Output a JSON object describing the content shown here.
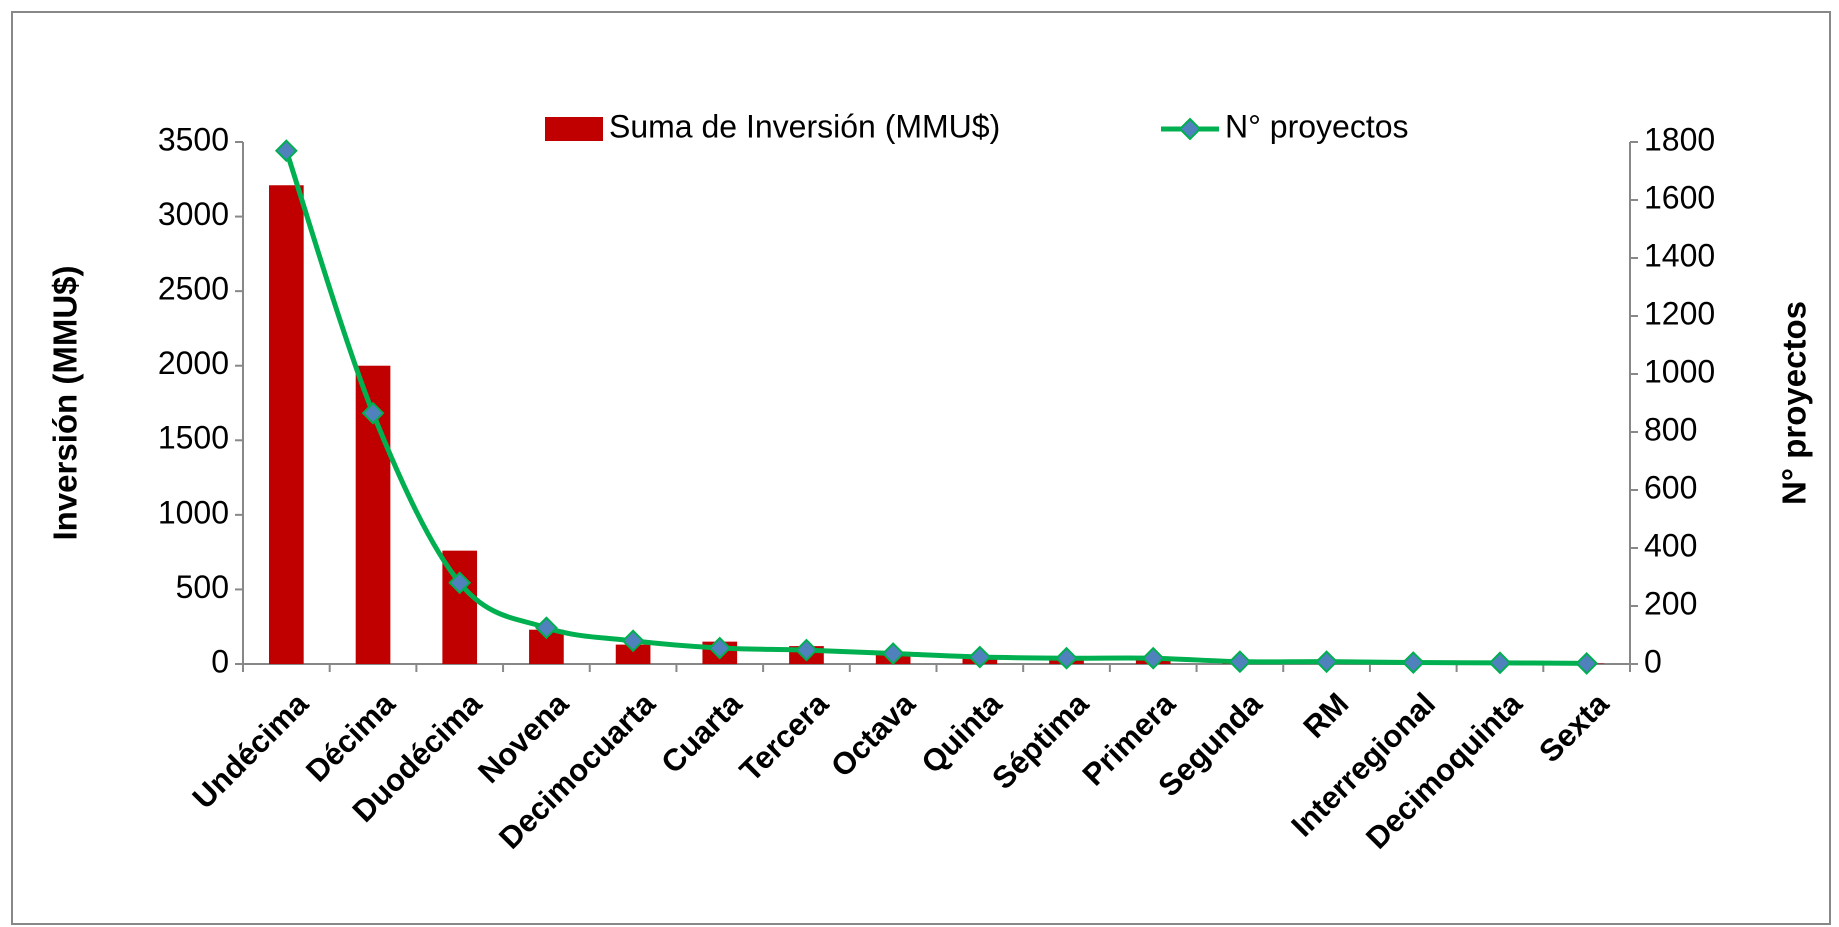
{
  "chart_data": {
    "type": "bar-line",
    "categories": [
      "Undécima",
      "Décima",
      "Duodécima",
      "Novena",
      "Decimocuarta",
      "Cuarta",
      "Tercera",
      "Octava",
      "Quinta",
      "Séptima",
      "Primera",
      "Segunda",
      "RM",
      "Interregional",
      "Decimoquinta",
      "Sexta"
    ],
    "series": [
      {
        "name": "Suma de Inversión (MMU$)",
        "type": "bar",
        "color": "#c00000",
        "values": [
          3210,
          2000,
          760,
          230,
          130,
          150,
          120,
          80,
          60,
          45,
          40,
          20,
          15,
          10,
          5,
          3
        ]
      },
      {
        "name": "N° proyectos",
        "type": "line",
        "axis": "y2",
        "color": "#00b050",
        "marker_color": "#4f81bd",
        "values": [
          1770,
          865,
          280,
          125,
          80,
          55,
          48,
          36,
          24,
          20,
          20,
          8,
          8,
          5,
          4,
          2
        ]
      }
    ],
    "ylabel": "Inversión (MMU$)",
    "y2label": "N° proyectos",
    "ylim": [
      0,
      3500
    ],
    "yticks": [
      0,
      500,
      1000,
      1500,
      2000,
      2500,
      3000,
      3500
    ],
    "y2lim": [
      0,
      1800
    ],
    "y2ticks": [
      0,
      200,
      400,
      600,
      800,
      1000,
      1200,
      1400,
      1600,
      1800
    ],
    "legend": "top"
  }
}
